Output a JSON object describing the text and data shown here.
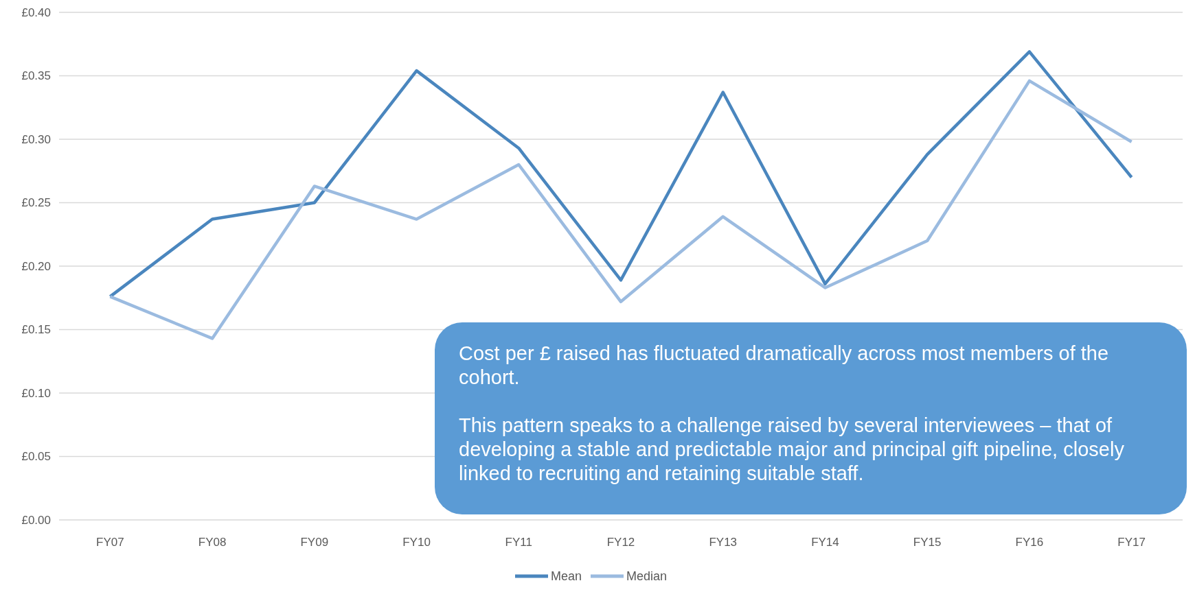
{
  "chart_data": {
    "type": "line",
    "categories": [
      "FY07",
      "FY08",
      "FY09",
      "FY10",
      "FY11",
      "FY12",
      "FY13",
      "FY14",
      "FY15",
      "FY16",
      "FY17"
    ],
    "series": [
      {
        "name": "Mean",
        "color": "#4a86be",
        "values": [
          0.176,
          0.237,
          0.25,
          0.354,
          0.293,
          0.189,
          0.337,
          0.186,
          0.288,
          0.369,
          0.27
        ]
      },
      {
        "name": "Median",
        "color": "#9bbbe0",
        "values": [
          0.176,
          0.143,
          0.263,
          0.237,
          0.28,
          0.172,
          0.239,
          0.183,
          0.22,
          0.346,
          0.298
        ]
      }
    ],
    "ylim": [
      0,
      0.4
    ],
    "yticks": [
      {
        "value": 0,
        "label": "£0.00"
      },
      {
        "value": 0.05,
        "label": "£0.05"
      },
      {
        "value": 0.1,
        "label": "£0.10"
      },
      {
        "value": 0.15,
        "label": "£0.15"
      },
      {
        "value": 0.2,
        "label": "£0.20"
      },
      {
        "value": 0.25,
        "label": "£0.25"
      },
      {
        "value": 0.3,
        "label": "£0.30"
      },
      {
        "value": 0.35,
        "label": "£0.35"
      },
      {
        "value": 0.4,
        "label": "£0.40"
      }
    ],
    "grid": "y",
    "legend": "bottom",
    "marker": "none",
    "line_style": "solid",
    "annotations": [
      "Cost per £ raised has fluctuated dramatically across most members of the cohort.",
      "This pattern speaks to a challenge raised by several interviewees – that of developing a stable and predictable major and principal gift pipeline, closely linked to recruiting and retaining suitable staff."
    ]
  }
}
